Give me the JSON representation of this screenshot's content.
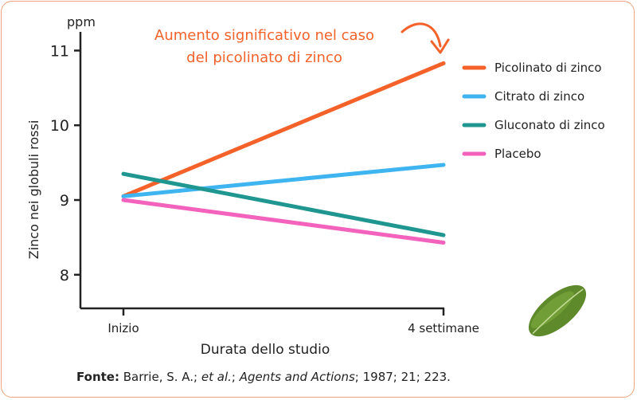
{
  "chart_data": {
    "type": "line",
    "unit_label": "ppm",
    "ylabel": "Zinco nei globuli rossi",
    "xlabel": "Durata dello studio",
    "categories": [
      "Inizio",
      "4 settimane"
    ],
    "yticks": [
      8,
      9,
      10,
      11
    ],
    "ylim": [
      7.55,
      11.25
    ],
    "grid": false,
    "legend_position": "right",
    "annotation": [
      "Aumento significativo nel caso",
      "del picolinato di zinco"
    ],
    "series": [
      {
        "name": "Picolinato di zinco",
        "color": "#f4622a",
        "values": [
          9.05,
          10.83
        ]
      },
      {
        "name": "Citrato di zinco",
        "color": "#3eb4f0",
        "values": [
          9.05,
          9.47
        ]
      },
      {
        "name": "Gluconato di zinco",
        "color": "#1f9690",
        "values": [
          9.35,
          8.53
        ]
      },
      {
        "name": "Placebo",
        "color": "#f363be",
        "values": [
          9.0,
          8.43
        ]
      }
    ]
  },
  "colors": {
    "annotation": "#f4622a",
    "axis": "#222222",
    "border": "#f2a27c",
    "leaf": "#5f8a2c"
  },
  "icons": {
    "annotation_arrow": "curved-arrow-icon",
    "decoration": "leaf-icon"
  },
  "source": {
    "label": "Fonte:",
    "authors": "Barrie, S. A.;",
    "etal": "et al.",
    "sep": ";",
    "journal": "Agents and Actions",
    "rest": "; 1987; 21; 223."
  }
}
